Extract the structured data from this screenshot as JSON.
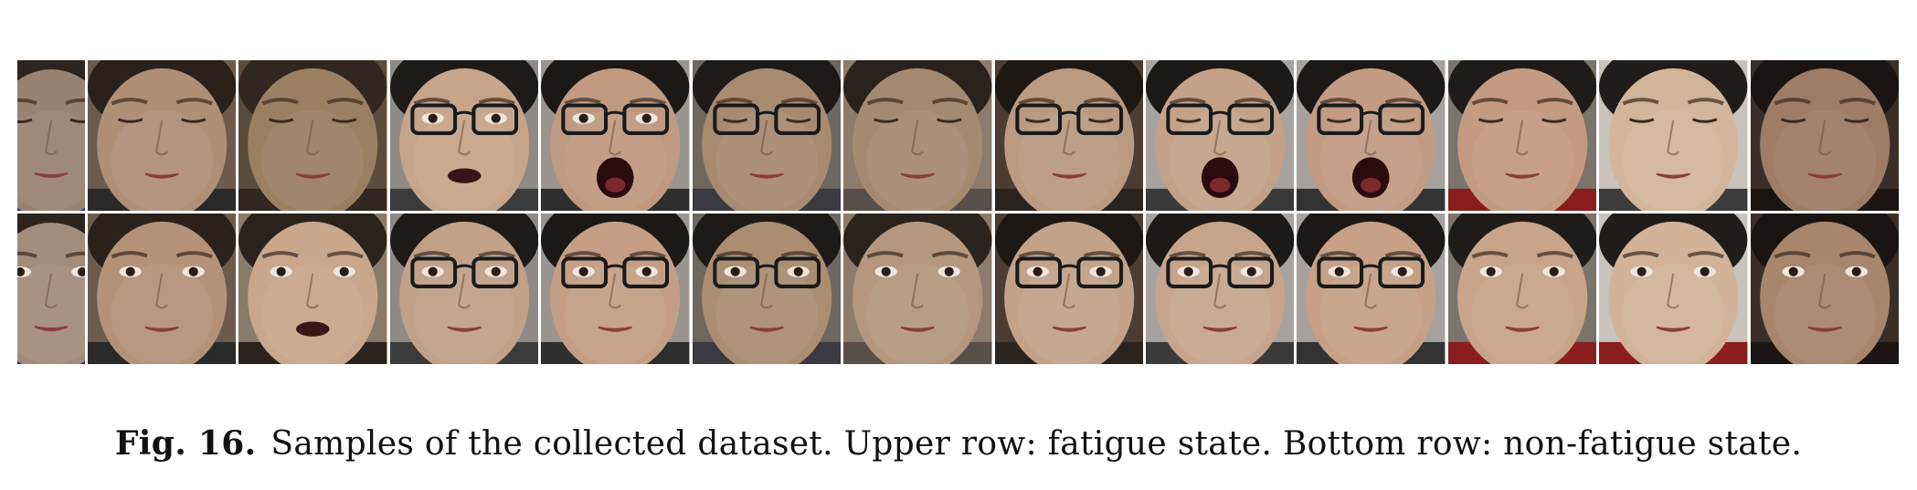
{
  "figure": {
    "label": "Fig. 16.",
    "caption": "Samples of the collected dataset. Upper row: fatigue state. Bottom row: non-fatigue state."
  },
  "samples": {
    "upper_row_state": "fatigue",
    "bottom_row_state": "non-fatigue",
    "tiles_per_row": 13,
    "upper_row": [
      {
        "skin": "#9a8270",
        "bg": "#7f6f62",
        "eyes": "closed",
        "mouth": "closed",
        "glasses": false,
        "hair": "#2c241e",
        "shirt": "#1f3a8a"
      },
      {
        "skin": "#b08f77",
        "bg": "#6d5c4d",
        "eyes": "closed",
        "mouth": "closed",
        "glasses": false,
        "hair": "#2a211b",
        "shirt": "#2a2a2a"
      },
      {
        "skin": "#9a7f63",
        "bg": "#5b4c3c",
        "eyes": "closed",
        "mouth": "closed",
        "glasses": false,
        "hair": "#2f2720",
        "shirt": "#2f2720"
      },
      {
        "skin": "#c6a58b",
        "bg": "#8f8a86",
        "eyes": "open",
        "mouth": "open",
        "glasses": true,
        "hair": "#1d1a18",
        "shirt": "#3b3b3b"
      },
      {
        "skin": "#c09a80",
        "bg": "#9b9590",
        "eyes": "open",
        "mouth": "yawn",
        "glasses": true,
        "hair": "#1b1815",
        "shirt": "#2e2e2e"
      },
      {
        "skin": "#a78a70",
        "bg": "#6e675f",
        "eyes": "closed",
        "mouth": "closed",
        "glasses": true,
        "hair": "#1e1a17",
        "shirt": "#3a3a40"
      },
      {
        "skin": "#a58a72",
        "bg": "#8d7c6c",
        "eyes": "closed",
        "mouth": "closed",
        "glasses": false,
        "hair": "#2a231d",
        "shirt": "#57504a"
      },
      {
        "skin": "#ba9a80",
        "bg": "#4b3d33",
        "eyes": "closed",
        "mouth": "closed",
        "glasses": true,
        "hair": "#1d1814",
        "shirt": "#2a2420"
      },
      {
        "skin": "#c3a289",
        "bg": "#a8a39f",
        "eyes": "closed",
        "mouth": "yawn",
        "glasses": true,
        "hair": "#1c1916",
        "shirt": "#3a3a3a"
      },
      {
        "skin": "#c29c84",
        "bg": "#a7a29e",
        "eyes": "closed",
        "mouth": "yawn",
        "glasses": true,
        "hair": "#1b1816",
        "shirt": "#333333"
      },
      {
        "skin": "#c39b82",
        "bg": "#7b746c",
        "eyes": "closed",
        "mouth": "closed",
        "glasses": false,
        "hair": "#1f1b18",
        "shirt": "#8a1d1d"
      },
      {
        "skin": "#d3b59c",
        "bg": "#c9c3bc",
        "eyes": "closed",
        "mouth": "closed",
        "glasses": false,
        "hair": "#1f1c1a",
        "shirt": "#3c3c3c"
      },
      {
        "skin": "#9e7c66",
        "bg": "#3a2f28",
        "eyes": "closed",
        "mouth": "closed",
        "glasses": false,
        "hair": "#1a1512",
        "shirt": "#1a1512"
      }
    ],
    "bottom_row": [
      {
        "skin": "#a48c7a",
        "bg": "#8b7e72",
        "eyes": "open",
        "mouth": "closed",
        "glasses": false,
        "hair": "#2c241e",
        "shirt": "#1f3a8a"
      },
      {
        "skin": "#b49279",
        "bg": "#6d5c4d",
        "eyes": "open",
        "mouth": "closed",
        "glasses": false,
        "hair": "#2a211b",
        "shirt": "#2a2a2a"
      },
      {
        "skin": "#c8a78c",
        "bg": "#8a7a68",
        "eyes": "open",
        "mouth": "open",
        "glasses": false,
        "hair": "#2a231d",
        "shirt": "#2a231d"
      },
      {
        "skin": "#c1a188",
        "bg": "#8f8a86",
        "eyes": "open",
        "mouth": "closed",
        "glasses": true,
        "hair": "#1d1a18",
        "shirt": "#3b3b3b"
      },
      {
        "skin": "#c49f85",
        "bg": "#9b9590",
        "eyes": "open",
        "mouth": "closed",
        "glasses": true,
        "hair": "#1b1815",
        "shirt": "#2e2e2e"
      },
      {
        "skin": "#ab8d72",
        "bg": "#6e675f",
        "eyes": "open",
        "mouth": "closed",
        "glasses": true,
        "hair": "#1e1a17",
        "shirt": "#3a3a40"
      },
      {
        "skin": "#b4977e",
        "bg": "#8d7c6c",
        "eyes": "open",
        "mouth": "closed",
        "glasses": false,
        "hair": "#2a231d",
        "shirt": "#57504a"
      },
      {
        "skin": "#c2a389",
        "bg": "#4b3d33",
        "eyes": "open",
        "mouth": "closed",
        "glasses": true,
        "hair": "#1d1814",
        "shirt": "#2a2420"
      },
      {
        "skin": "#c6a58c",
        "bg": "#a8a39f",
        "eyes": "open",
        "mouth": "closed",
        "glasses": true,
        "hair": "#1c1916",
        "shirt": "#3a3a3a"
      },
      {
        "skin": "#c6a187",
        "bg": "#a7a29e",
        "eyes": "open",
        "mouth": "closed",
        "glasses": true,
        "hair": "#1b1816",
        "shirt": "#333333"
      },
      {
        "skin": "#c8a48a",
        "bg": "#7b746c",
        "eyes": "open",
        "mouth": "closed",
        "glasses": false,
        "hair": "#1f1b18",
        "shirt": "#8a1d1d"
      },
      {
        "skin": "#d2b39a",
        "bg": "#c9c3bc",
        "eyes": "open",
        "mouth": "closed",
        "glasses": false,
        "hair": "#1f1c1a",
        "shirt": "#8a1d1d"
      },
      {
        "skin": "#a8856d",
        "bg": "#3a2f28",
        "eyes": "open",
        "mouth": "closed",
        "glasses": false,
        "hair": "#1a1512",
        "shirt": "#1a1512"
      }
    ]
  }
}
